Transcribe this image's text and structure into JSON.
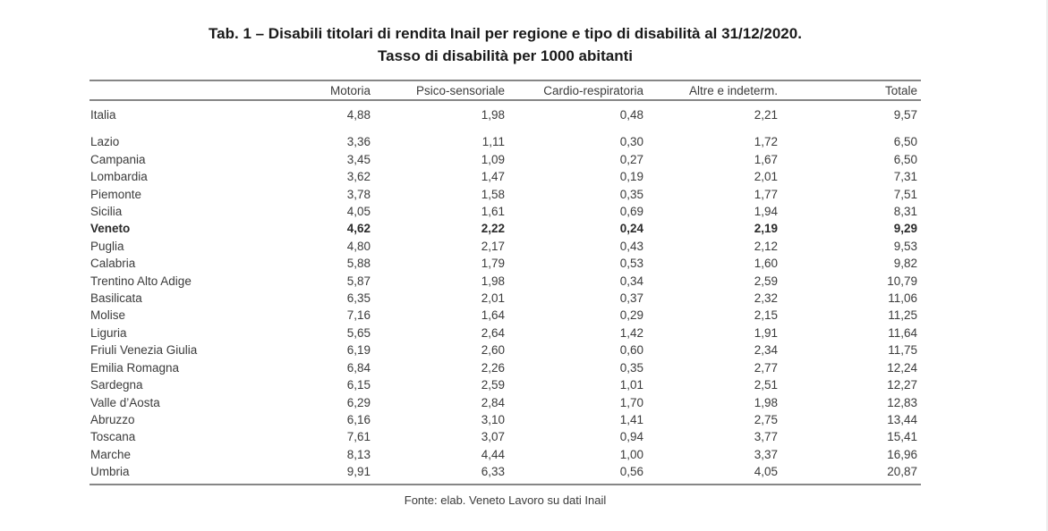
{
  "title": {
    "line1": "Tab. 1 – Disabili titolari di rendita Inail per regione e tipo di disabilità al 31/12/2020.",
    "line2": "Tasso di disabilità per 1000 abitanti"
  },
  "table": {
    "columns": [
      "",
      "Motoria",
      "Psico-sensoriale",
      "Cardio-respiratoria",
      "Altre e indeterm.",
      "Totale"
    ],
    "rows": [
      {
        "label": "Italia",
        "values": [
          "4,88",
          "1,98",
          "0,48",
          "2,21",
          "9,57"
        ],
        "summary": true,
        "bold": false
      },
      {
        "label": "Lazio",
        "values": [
          "3,36",
          "1,11",
          "0,30",
          "1,72",
          "6,50"
        ],
        "summary": false,
        "bold": false
      },
      {
        "label": "Campania",
        "values": [
          "3,45",
          "1,09",
          "0,27",
          "1,67",
          "6,50"
        ],
        "summary": false,
        "bold": false
      },
      {
        "label": "Lombardia",
        "values": [
          "3,62",
          "1,47",
          "0,19",
          "2,01",
          "7,31"
        ],
        "summary": false,
        "bold": false
      },
      {
        "label": "Piemonte",
        "values": [
          "3,78",
          "1,58",
          "0,35",
          "1,77",
          "7,51"
        ],
        "summary": false,
        "bold": false
      },
      {
        "label": "Sicilia",
        "values": [
          "4,05",
          "1,61",
          "0,69",
          "1,94",
          "8,31"
        ],
        "summary": false,
        "bold": false
      },
      {
        "label": "Veneto",
        "values": [
          "4,62",
          "2,22",
          "0,24",
          "2,19",
          "9,29"
        ],
        "summary": false,
        "bold": true
      },
      {
        "label": "Puglia",
        "values": [
          "4,80",
          "2,17",
          "0,43",
          "2,12",
          "9,53"
        ],
        "summary": false,
        "bold": false
      },
      {
        "label": "Calabria",
        "values": [
          "5,88",
          "1,79",
          "0,53",
          "1,60",
          "9,82"
        ],
        "summary": false,
        "bold": false
      },
      {
        "label": "Trentino Alto Adige",
        "values": [
          "5,87",
          "1,98",
          "0,34",
          "2,59",
          "10,79"
        ],
        "summary": false,
        "bold": false
      },
      {
        "label": "Basilicata",
        "values": [
          "6,35",
          "2,01",
          "0,37",
          "2,32",
          "11,06"
        ],
        "summary": false,
        "bold": false
      },
      {
        "label": "Molise",
        "values": [
          "7,16",
          "1,64",
          "0,29",
          "2,15",
          "11,25"
        ],
        "summary": false,
        "bold": false
      },
      {
        "label": "Liguria",
        "values": [
          "5,65",
          "2,64",
          "1,42",
          "1,91",
          "11,64"
        ],
        "summary": false,
        "bold": false
      },
      {
        "label": "Friuli Venezia Giulia",
        "values": [
          "6,19",
          "2,60",
          "0,60",
          "2,34",
          "11,75"
        ],
        "summary": false,
        "bold": false
      },
      {
        "label": "Emilia Romagna",
        "values": [
          "6,84",
          "2,26",
          "0,35",
          "2,77",
          "12,24"
        ],
        "summary": false,
        "bold": false
      },
      {
        "label": "Sardegna",
        "values": [
          "6,15",
          "2,59",
          "1,01",
          "2,51",
          "12,27"
        ],
        "summary": false,
        "bold": false
      },
      {
        "label": "Valle d’Aosta",
        "values": [
          "6,29",
          "2,84",
          "1,70",
          "1,98",
          "12,83"
        ],
        "summary": false,
        "bold": false
      },
      {
        "label": "Abruzzo",
        "values": [
          "6,16",
          "3,10",
          "1,41",
          "2,75",
          "13,44"
        ],
        "summary": false,
        "bold": false
      },
      {
        "label": "Toscana",
        "values": [
          "7,61",
          "3,07",
          "0,94",
          "3,77",
          "15,41"
        ],
        "summary": false,
        "bold": false
      },
      {
        "label": "Marche",
        "values": [
          "8,13",
          "4,44",
          "1,00",
          "3,37",
          "16,96"
        ],
        "summary": false,
        "bold": false
      },
      {
        "label": "Umbria",
        "values": [
          "9,91",
          "6,33",
          "0,56",
          "4,05",
          "20,87"
        ],
        "summary": false,
        "bold": false
      }
    ]
  },
  "footer": {
    "source": "Fonte: elab. Veneto Lavoro su dati Inail"
  },
  "colors": {
    "rule": "#868686",
    "body_text": "#3b3b3b",
    "title_text": "#1a1a1a",
    "background": "#ffffff"
  }
}
